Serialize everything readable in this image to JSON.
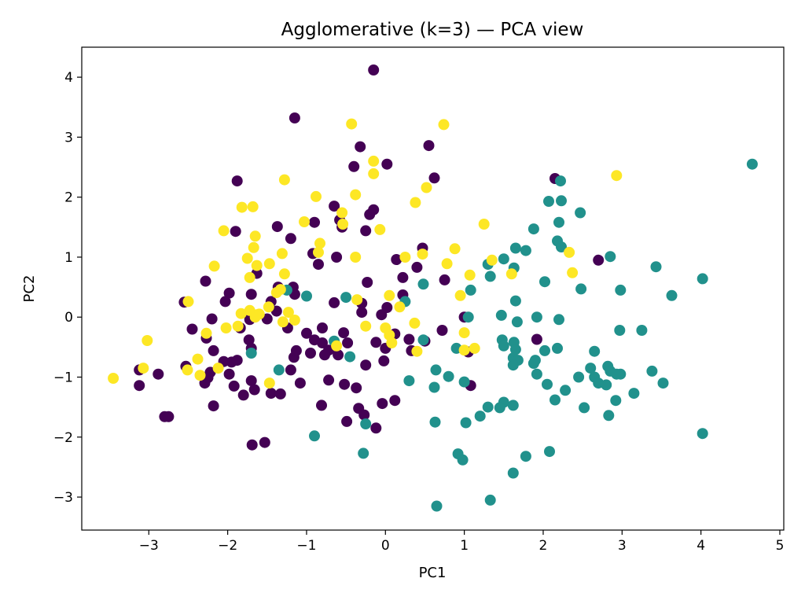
{
  "chart_data": {
    "type": "scatter",
    "title": "Agglomerative (k=3) — PCA view",
    "xlabel": "PC1",
    "ylabel": "PC2",
    "xlim": [
      -3.85,
      5.05
    ],
    "ylim": [
      -3.55,
      4.5
    ],
    "x_ticks": [
      -3,
      -2,
      -1,
      0,
      1,
      2,
      3,
      4,
      5
    ],
    "y_ticks": [
      -3,
      -2,
      -1,
      0,
      1,
      2,
      3,
      4
    ],
    "x_tick_labels": [
      "−3",
      "−2",
      "−1",
      "0",
      "1",
      "2",
      "3",
      "4",
      "5"
    ],
    "y_tick_labels": [
      "−3",
      "−2",
      "−1",
      "0",
      "1",
      "2",
      "3",
      "4"
    ],
    "grid": false,
    "legend": "none",
    "colors": {
      "cluster_0": "#440154",
      "cluster_1": "#21918c",
      "cluster_2": "#fde725"
    },
    "series": [
      {
        "color": "#440154",
        "points": [
          [
            -0.15,
            4.12
          ],
          [
            -1.15,
            3.32
          ],
          [
            -0.32,
            2.84
          ],
          [
            -0.4,
            2.51
          ],
          [
            0.55,
            2.86
          ],
          [
            0.62,
            2.32
          ],
          [
            -1.88,
            2.27
          ],
          [
            0.02,
            2.55
          ],
          [
            -1.9,
            1.43
          ],
          [
            -1.37,
            1.51
          ],
          [
            -1.2,
            1.31
          ],
          [
            -0.9,
            1.58
          ],
          [
            -0.65,
            1.85
          ],
          [
            -0.58,
            1.62
          ],
          [
            -0.55,
            1.5
          ],
          [
            -0.2,
            1.71
          ],
          [
            -0.15,
            1.79
          ],
          [
            -0.25,
            1.44
          ],
          [
            -0.92,
            1.06
          ],
          [
            -0.62,
            1.0
          ],
          [
            -0.85,
            0.88
          ],
          [
            0.4,
            0.83
          ],
          [
            0.47,
            1.15
          ],
          [
            0.14,
            0.96
          ],
          [
            0.22,
            0.66
          ],
          [
            0.22,
            0.37
          ],
          [
            -1.98,
            0.4
          ],
          [
            -2.28,
            0.6
          ],
          [
            -2.55,
            0.25
          ],
          [
            -2.03,
            0.26
          ],
          [
            -1.7,
            0.38
          ],
          [
            -1.36,
            0.5
          ],
          [
            -1.17,
            0.5
          ],
          [
            -1.15,
            0.38
          ],
          [
            -1.63,
            0.73
          ],
          [
            -1.38,
            0.1
          ],
          [
            -1.5,
            -0.03
          ],
          [
            -1.72,
            -0.04
          ],
          [
            -1.84,
            -0.18
          ],
          [
            -2.2,
            -0.03
          ],
          [
            -2.27,
            -0.35
          ],
          [
            -2.45,
            -0.2
          ],
          [
            -2.18,
            -0.56
          ],
          [
            -1.95,
            -0.75
          ],
          [
            -2.05,
            -0.74
          ],
          [
            -1.73,
            -0.38
          ],
          [
            -1.7,
            -0.52
          ],
          [
            -1.98,
            -0.95
          ],
          [
            -2.22,
            -0.92
          ],
          [
            -2.29,
            -1.1
          ],
          [
            -2.53,
            -0.82
          ],
          [
            -2.25,
            -1.01
          ],
          [
            -2.18,
            -1.48
          ],
          [
            -1.92,
            -1.15
          ],
          [
            -1.8,
            -1.3
          ],
          [
            -1.7,
            -1.06
          ],
          [
            -1.66,
            -1.21
          ],
          [
            -1.69,
            -2.13
          ],
          [
            -1.53,
            -2.09
          ],
          [
            -1.45,
            -1.27
          ],
          [
            -1.33,
            -1.28
          ],
          [
            -1.2,
            -0.88
          ],
          [
            -1.16,
            -0.67
          ],
          [
            -1.13,
            -0.56
          ],
          [
            -1.08,
            -1.1
          ],
          [
            -1.24,
            -0.18
          ],
          [
            -1.0,
            -0.27
          ],
          [
            -0.9,
            -0.38
          ],
          [
            -0.8,
            -0.43
          ],
          [
            -0.72,
            -0.55
          ],
          [
            -0.77,
            -0.63
          ],
          [
            -0.72,
            -1.05
          ],
          [
            -0.81,
            -1.47
          ],
          [
            -0.6,
            -0.63
          ],
          [
            -0.53,
            -0.26
          ],
          [
            -0.48,
            -0.43
          ],
          [
            -0.49,
            -1.74
          ],
          [
            -0.52,
            -1.12
          ],
          [
            -0.37,
            -1.18
          ],
          [
            -0.34,
            -1.52
          ],
          [
            -0.27,
            -1.63
          ],
          [
            -0.25,
            -0.8
          ],
          [
            -0.12,
            -1.85
          ],
          [
            -0.04,
            -1.44
          ],
          [
            0.0,
            -0.52
          ],
          [
            -0.02,
            -0.73
          ],
          [
            0.12,
            -1.39
          ],
          [
            0.12,
            -0.28
          ],
          [
            -0.05,
            0.04
          ],
          [
            0.02,
            0.16
          ],
          [
            -0.3,
            0.23
          ],
          [
            -0.23,
            0.58
          ],
          [
            -0.65,
            0.24
          ],
          [
            -0.8,
            -0.18
          ],
          [
            -1.45,
            0.26
          ],
          [
            0.3,
            -0.37
          ],
          [
            0.33,
            -0.56
          ],
          [
            0.5,
            -0.4
          ],
          [
            0.75,
            0.62
          ],
          [
            1.0,
            0.0
          ],
          [
            0.72,
            -0.22
          ],
          [
            1.05,
            -0.58
          ],
          [
            1.08,
            -1.14
          ],
          [
            1.92,
            -0.37
          ],
          [
            2.15,
            2.31
          ],
          [
            2.7,
            0.95
          ],
          [
            -2.75,
            -1.66
          ],
          [
            -2.8,
            -1.66
          ],
          [
            -3.12,
            -0.88
          ],
          [
            -3.12,
            -1.14
          ],
          [
            -2.88,
            -0.95
          ],
          [
            -1.88,
            -0.72
          ],
          [
            -0.3,
            0.08
          ],
          [
            -0.95,
            -0.6
          ],
          [
            -0.12,
            -0.42
          ]
        ]
      },
      {
        "color": "#21918c",
        "points": [
          [
            4.65,
            2.55
          ],
          [
            2.22,
            2.27
          ],
          [
            2.07,
            1.93
          ],
          [
            2.23,
            1.94
          ],
          [
            2.47,
            1.74
          ],
          [
            2.2,
            1.58
          ],
          [
            1.88,
            1.47
          ],
          [
            2.18,
            1.27
          ],
          [
            2.23,
            1.17
          ],
          [
            1.65,
            1.15
          ],
          [
            1.78,
            1.11
          ],
          [
            1.5,
            0.97
          ],
          [
            1.3,
            0.88
          ],
          [
            1.63,
            0.82
          ],
          [
            1.33,
            0.68
          ],
          [
            2.85,
            1.01
          ],
          [
            3.43,
            0.84
          ],
          [
            4.02,
            0.64
          ],
          [
            2.02,
            0.59
          ],
          [
            2.48,
            0.47
          ],
          [
            2.98,
            0.45
          ],
          [
            3.63,
            0.36
          ],
          [
            1.08,
            0.45
          ],
          [
            1.65,
            0.27
          ],
          [
            1.47,
            0.03
          ],
          [
            1.05,
            0.0
          ],
          [
            1.92,
            0.0
          ],
          [
            2.2,
            -0.04
          ],
          [
            1.67,
            -0.08
          ],
          [
            2.97,
            -0.22
          ],
          [
            3.25,
            -0.22
          ],
          [
            1.48,
            -0.38
          ],
          [
            1.5,
            -0.48
          ],
          [
            1.63,
            -0.42
          ],
          [
            1.65,
            -0.54
          ],
          [
            2.02,
            -0.56
          ],
          [
            2.18,
            -0.52
          ],
          [
            0.9,
            -0.52
          ],
          [
            1.62,
            -0.68
          ],
          [
            1.68,
            -0.72
          ],
          [
            1.9,
            -0.72
          ],
          [
            1.88,
            -0.77
          ],
          [
            1.62,
            -0.8
          ],
          [
            1.92,
            -0.95
          ],
          [
            2.65,
            -0.57
          ],
          [
            2.6,
            -0.85
          ],
          [
            2.45,
            -1.0
          ],
          [
            2.82,
            -0.82
          ],
          [
            2.85,
            -0.9
          ],
          [
            2.98,
            -0.95
          ],
          [
            2.93,
            -0.95
          ],
          [
            3.38,
            -0.9
          ],
          [
            2.65,
            -1.0
          ],
          [
            2.7,
            -1.1
          ],
          [
            2.8,
            -1.13
          ],
          [
            3.52,
            -1.1
          ],
          [
            3.15,
            -1.27
          ],
          [
            2.05,
            -1.12
          ],
          [
            2.15,
            -1.38
          ],
          [
            2.28,
            -1.22
          ],
          [
            2.52,
            -1.51
          ],
          [
            2.92,
            -1.39
          ],
          [
            2.83,
            -1.64
          ],
          [
            1.5,
            -1.42
          ],
          [
            1.45,
            -1.51
          ],
          [
            1.3,
            -1.5
          ],
          [
            1.2,
            -1.65
          ],
          [
            1.62,
            -1.47
          ],
          [
            1.02,
            -1.76
          ],
          [
            1.0,
            -1.08
          ],
          [
            0.8,
            -0.99
          ],
          [
            0.62,
            -1.17
          ],
          [
            0.63,
            -1.75
          ],
          [
            0.64,
            -0.88
          ],
          [
            0.92,
            -2.28
          ],
          [
            0.98,
            -2.38
          ],
          [
            1.33,
            -3.05
          ],
          [
            0.65,
            -3.15
          ],
          [
            1.62,
            -2.6
          ],
          [
            1.78,
            -2.32
          ],
          [
            2.08,
            -2.24
          ],
          [
            4.02,
            -1.94
          ],
          [
            -0.9,
            -1.98
          ],
          [
            -0.28,
            -2.27
          ],
          [
            -0.25,
            -1.78
          ],
          [
            0.3,
            -1.06
          ],
          [
            0.48,
            -0.38
          ],
          [
            0.48,
            0.55
          ],
          [
            0.25,
            0.26
          ],
          [
            -0.5,
            0.33
          ],
          [
            -0.45,
            -0.66
          ],
          [
            -0.65,
            -0.4
          ],
          [
            -1.0,
            0.35
          ],
          [
            -1.35,
            -0.88
          ],
          [
            -1.25,
            0.45
          ],
          [
            -1.7,
            -0.6
          ]
        ]
      },
      {
        "color": "#fde725",
        "points": [
          [
            -0.43,
            3.22
          ],
          [
            0.74,
            3.21
          ],
          [
            2.93,
            2.36
          ],
          [
            -0.15,
            2.6
          ],
          [
            -0.15,
            2.39
          ],
          [
            -1.28,
            2.29
          ],
          [
            0.52,
            2.16
          ],
          [
            -0.38,
            2.04
          ],
          [
            -0.88,
            2.01
          ],
          [
            0.38,
            1.91
          ],
          [
            -1.82,
            1.83
          ],
          [
            -1.68,
            1.84
          ],
          [
            -0.55,
            1.74
          ],
          [
            -2.05,
            1.44
          ],
          [
            -1.65,
            1.35
          ],
          [
            -1.03,
            1.59
          ],
          [
            -0.83,
            1.23
          ],
          [
            -0.54,
            1.55
          ],
          [
            -0.07,
            1.46
          ],
          [
            -0.85,
            1.08
          ],
          [
            -0.38,
            1.0
          ],
          [
            0.25,
            1.0
          ],
          [
            1.25,
            1.55
          ],
          [
            0.88,
            1.14
          ],
          [
            0.47,
            1.05
          ],
          [
            -1.67,
            1.16
          ],
          [
            -1.75,
            0.98
          ],
          [
            -1.63,
            0.86
          ],
          [
            -1.47,
            0.89
          ],
          [
            -2.17,
            0.85
          ],
          [
            -1.31,
            1.06
          ],
          [
            -1.28,
            0.72
          ],
          [
            -1.33,
            0.46
          ],
          [
            -1.38,
            0.41
          ],
          [
            -1.72,
            0.66
          ],
          [
            -2.5,
            0.26
          ],
          [
            -1.48,
            0.17
          ],
          [
            -1.83,
            0.06
          ],
          [
            -1.72,
            0.11
          ],
          [
            -1.65,
            0.0
          ],
          [
            -1.63,
            0.04
          ],
          [
            -1.23,
            0.08
          ],
          [
            -1.15,
            -0.05
          ],
          [
            -1.3,
            -0.08
          ],
          [
            -1.6,
            0.05
          ],
          [
            -1.87,
            -0.15
          ],
          [
            -2.02,
            -0.18
          ],
          [
            -2.27,
            -0.27
          ],
          [
            -0.36,
            0.29
          ],
          [
            -0.25,
            -0.15
          ],
          [
            0.0,
            -0.18
          ],
          [
            0.05,
            -0.3
          ],
          [
            0.37,
            -0.1
          ],
          [
            0.4,
            -0.57
          ],
          [
            0.08,
            -0.43
          ],
          [
            0.78,
            0.89
          ],
          [
            1.07,
            0.7
          ],
          [
            1.35,
            0.95
          ],
          [
            1.6,
            0.72
          ],
          [
            2.33,
            1.08
          ],
          [
            2.37,
            0.74
          ],
          [
            0.95,
            0.36
          ],
          [
            1.0,
            -0.26
          ],
          [
            1.0,
            -0.55
          ],
          [
            1.13,
            -0.52
          ],
          [
            -2.38,
            -0.7
          ],
          [
            -2.51,
            -0.88
          ],
          [
            -2.35,
            -0.97
          ],
          [
            -2.12,
            -0.85
          ],
          [
            -3.02,
            -0.39
          ],
          [
            -3.07,
            -0.85
          ],
          [
            -3.45,
            -1.02
          ],
          [
            -1.47,
            -1.1
          ],
          [
            -0.62,
            -0.48
          ],
          [
            0.18,
            0.17
          ],
          [
            0.05,
            0.36
          ]
        ]
      }
    ]
  }
}
